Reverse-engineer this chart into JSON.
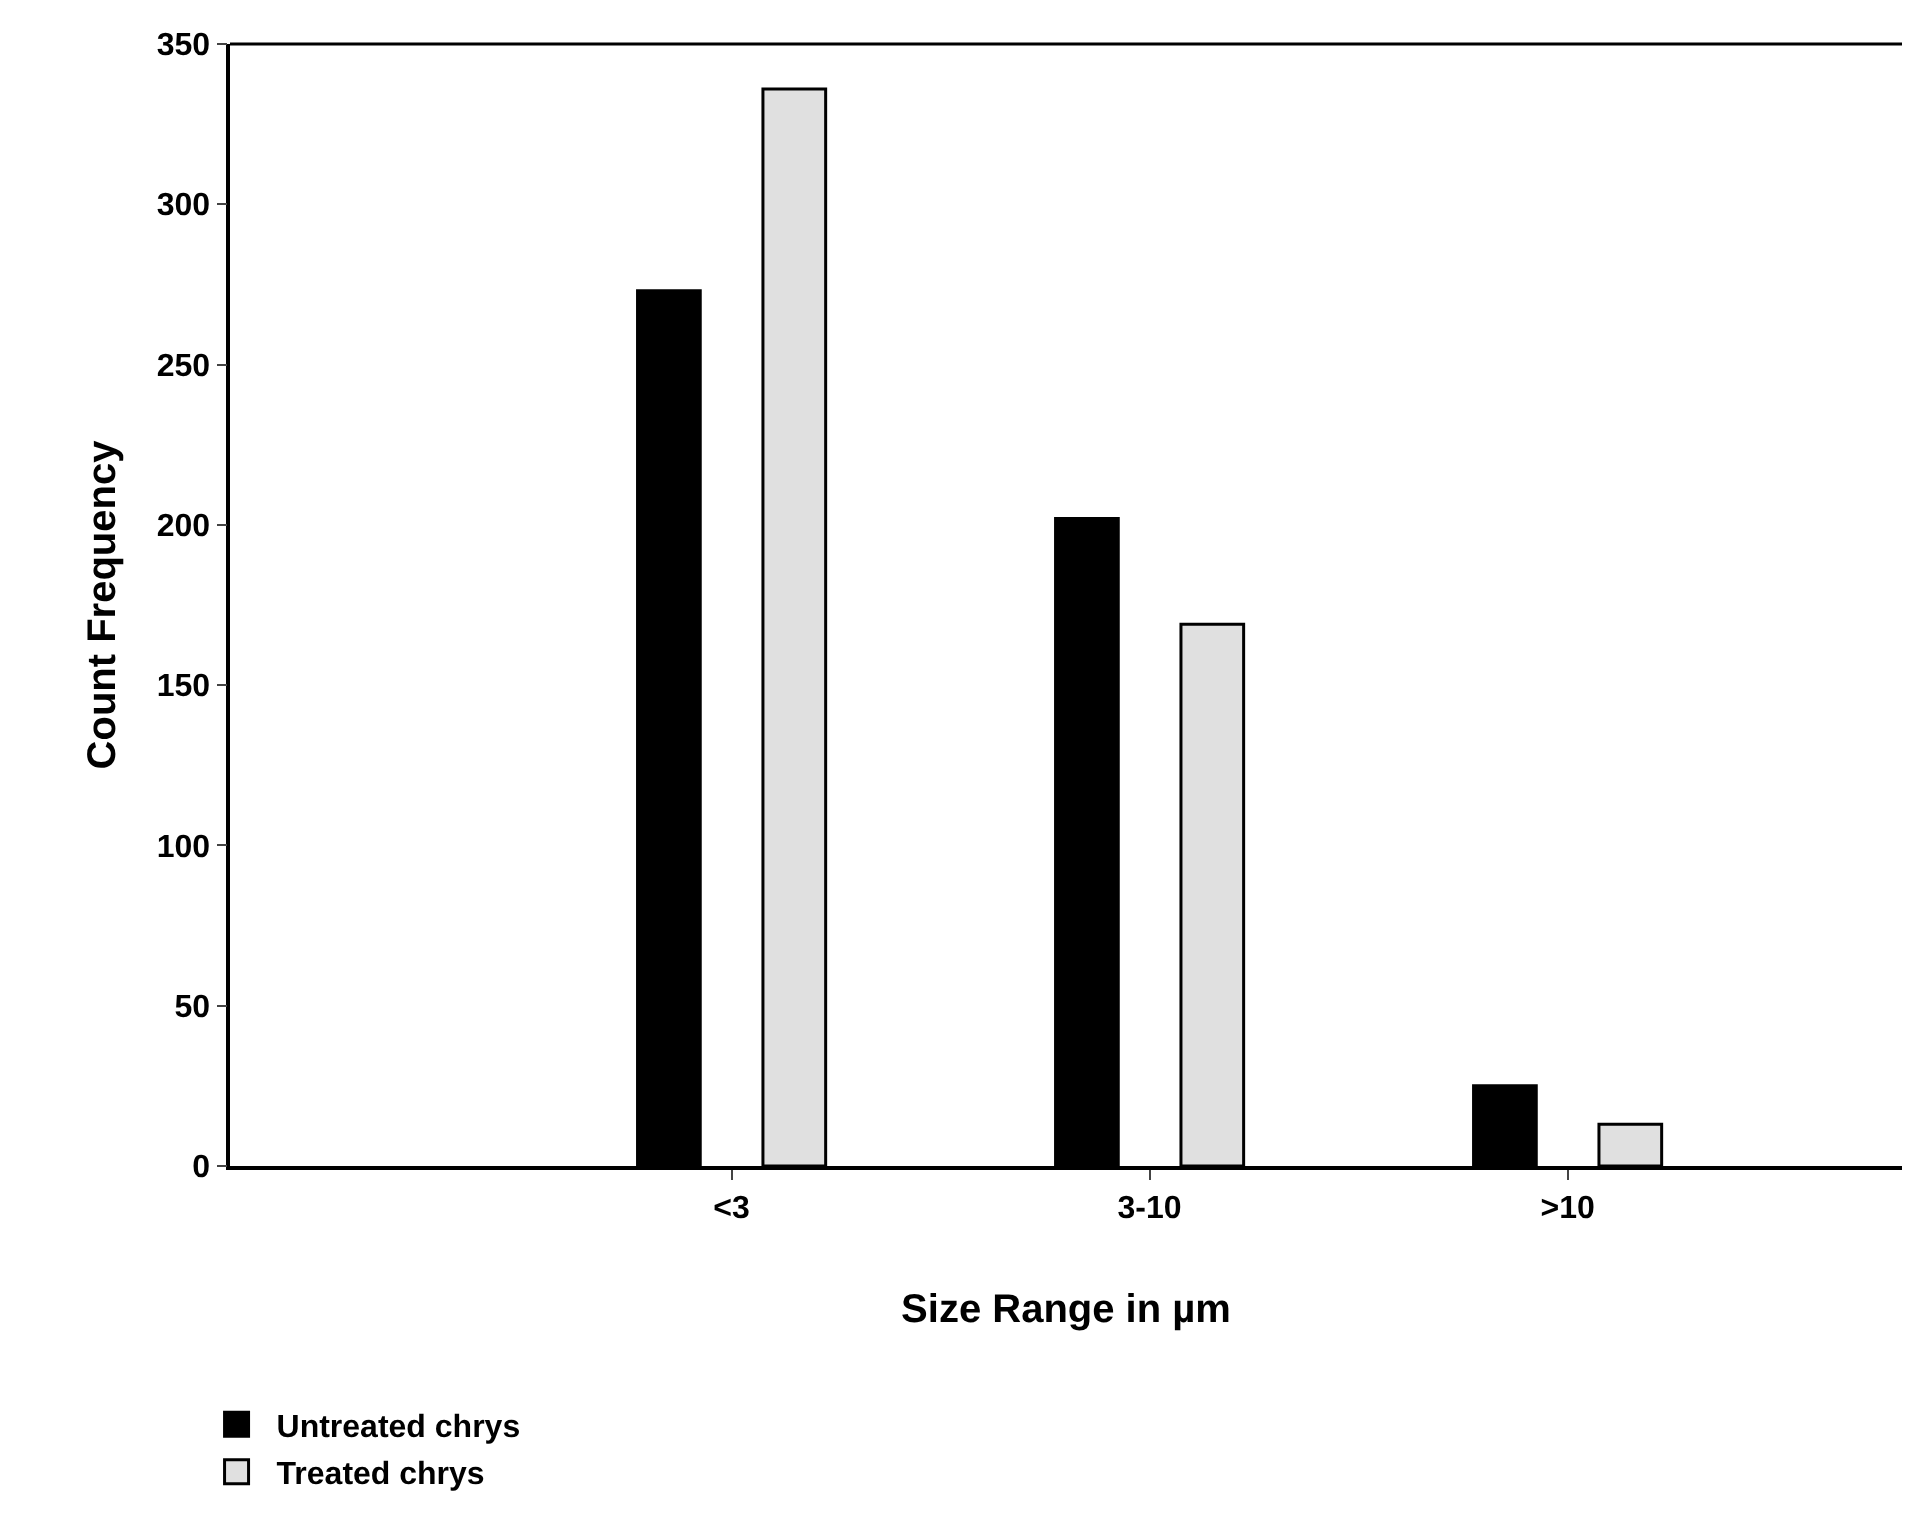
{
  "chart_data": {
    "type": "bar",
    "xlabel": "Size Range in µm",
    "ylabel": "Count Frequency",
    "categories": [
      "<3",
      "3-10",
      ">10"
    ],
    "series": [
      {
        "name": "Untreated chrys",
        "color": "#000000",
        "values": [
          273,
          202,
          25
        ]
      },
      {
        "name": "Treated chrys",
        "color": "#e0e0e0",
        "values": [
          336,
          169,
          13
        ]
      }
    ],
    "ylim": [
      0,
      350
    ],
    "yticks": [
      0,
      50,
      100,
      150,
      200,
      250,
      300,
      350
    ],
    "legend": "bottom left"
  }
}
